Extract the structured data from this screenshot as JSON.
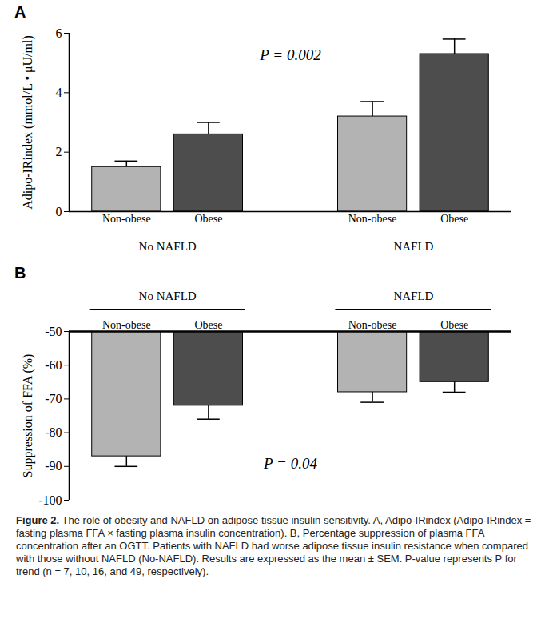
{
  "chart_data": [
    {
      "type": "bar",
      "title": "A",
      "y_label": "Adipo-IRindex (mmol/L • μU/ml)",
      "categories": [
        "Non-obese",
        "Obese",
        "Non-obese",
        "Obese"
      ],
      "groups": [
        "No NAFLD",
        "No NAFLD",
        "NAFLD",
        "NAFLD"
      ],
      "values": [
        1.5,
        2.6,
        3.2,
        5.3
      ],
      "errors": [
        0.2,
        0.4,
        0.5,
        0.5
      ],
      "colors": [
        "#b3b3b3",
        "#4d4d4d",
        "#b3b3b3",
        "#4d4d4d"
      ],
      "baseline": 0,
      "ylim": [
        0,
        6
      ],
      "yticks": [
        0,
        2,
        4,
        6
      ],
      "annotation": "P = 0.002",
      "grid": false
    },
    {
      "type": "bar",
      "title": "B",
      "y_label": "Suppression of FFA (%)",
      "categories": [
        "Non-obese",
        "Obese",
        "Non-obese",
        "Obese"
      ],
      "groups": [
        "No NAFLD",
        "No NAFLD",
        "NAFLD",
        "NAFLD"
      ],
      "values": [
        -87,
        -72,
        -68,
        -65
      ],
      "errors": [
        3,
        4,
        3,
        3
      ],
      "colors": [
        "#b3b3b3",
        "#4d4d4d",
        "#b3b3b3",
        "#4d4d4d"
      ],
      "baseline": -50,
      "ylim": [
        -100,
        -50
      ],
      "yticks": [
        -100,
        -90,
        -80,
        -70,
        -60,
        -50
      ],
      "annotation": "P = 0.04",
      "grid": false
    }
  ],
  "caption": {
    "label": "Figure 2.",
    "text": "The role of obesity and NAFLD on adipose tissue insulin sensitivity. A, Adipo-IRindex (Adipo-IRindex = fasting plasma FFA × fasting plasma insulin concentration). B, Percentage suppression of plasma FFA concentration after an OGTT. Patients with NAFLD had worse adipose tissue insulin resistance when compared with those without NAFLD (No-NAFLD). Results are expressed as the mean ± SEM. P-value represents P for trend (n = 7, 10, 16, and 49, respectively)."
  }
}
